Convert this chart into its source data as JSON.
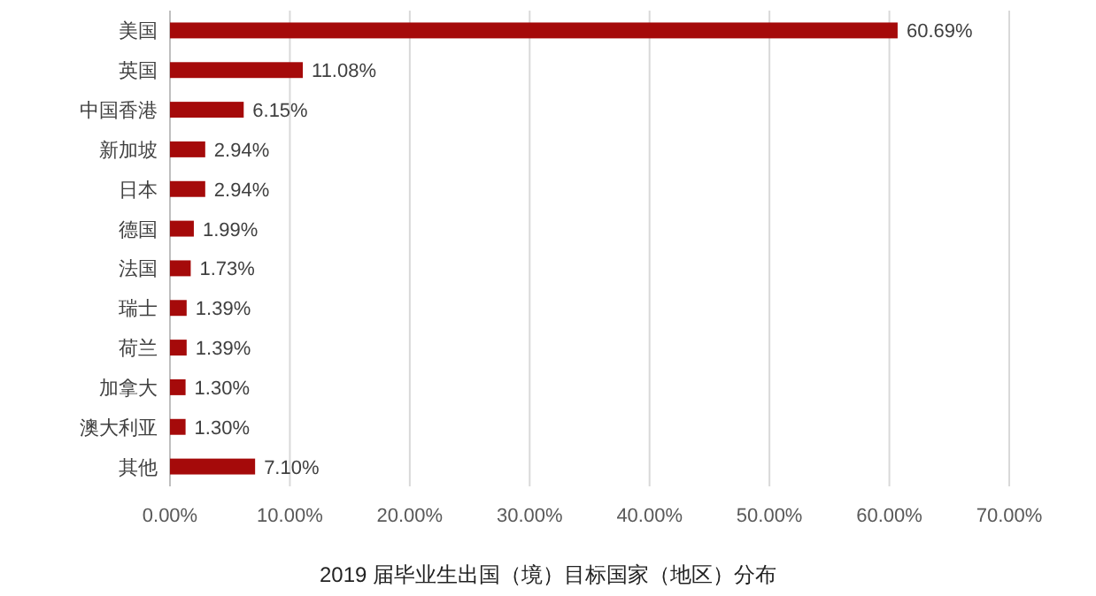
{
  "chart_data": {
    "type": "bar",
    "orientation": "horizontal",
    "title": "2019 届毕业生出国（境）目标国家（地区）分布",
    "categories": [
      "美国",
      "英国",
      "中国香港",
      "新加坡",
      "日本",
      "德国",
      "法国",
      "瑞士",
      "荷兰",
      "加拿大",
      "澳大利亚",
      "其他"
    ],
    "values": [
      60.69,
      11.08,
      6.15,
      2.94,
      2.94,
      1.99,
      1.73,
      1.39,
      1.39,
      1.3,
      1.3,
      7.1
    ],
    "value_labels": [
      "60.69%",
      "11.08%",
      "6.15%",
      "2.94%",
      "2.94%",
      "1.99%",
      "1.73%",
      "1.39%",
      "1.39%",
      "1.30%",
      "1.30%",
      "7.10%"
    ],
    "color": "#a50a0a",
    "xlim": [
      0,
      70
    ],
    "xticks": [
      {
        "value": 0,
        "label": "0.00%"
      },
      {
        "value": 10,
        "label": "10.00%"
      },
      {
        "value": 20,
        "label": "20.00%"
      },
      {
        "value": 30,
        "label": "30.00%"
      },
      {
        "value": 40,
        "label": "40.00%"
      },
      {
        "value": 50,
        "label": "50.00%"
      },
      {
        "value": 60,
        "label": "60.00%"
      },
      {
        "value": 70,
        "label": "70.00%"
      }
    ],
    "grid": "x"
  }
}
